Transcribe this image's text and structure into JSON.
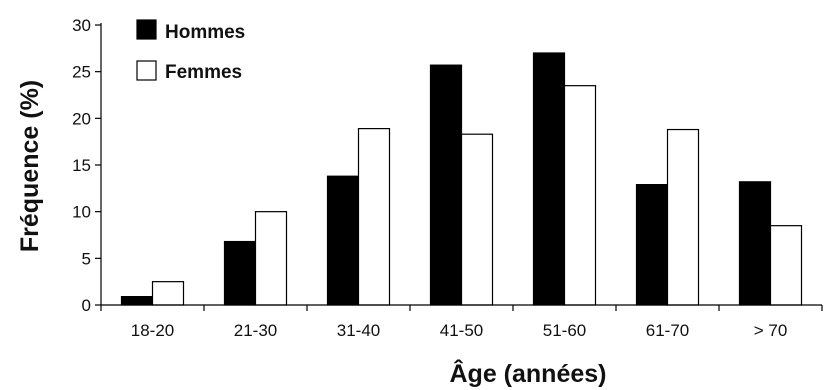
{
  "chart_data": {
    "type": "bar",
    "xlabel": "Âge (années)",
    "ylabel": "Fréquence (%)",
    "ylim": [
      0,
      30
    ],
    "yticks": [
      0,
      5,
      10,
      15,
      20,
      25,
      30
    ],
    "categories": [
      "18-20",
      "21-30",
      "31-40",
      "41-50",
      "51-60",
      "61-70",
      "> 70"
    ],
    "series": [
      {
        "name": "Hommes",
        "color": "#000000",
        "values": [
          0.9,
          6.8,
          13.8,
          25.7,
          27.0,
          12.9,
          13.2
        ]
      },
      {
        "name": "Femmes",
        "color": "#ffffff",
        "values": [
          2.5,
          10.0,
          18.9,
          18.3,
          23.5,
          18.8,
          8.5
        ]
      }
    ],
    "legend": "top-left",
    "grid": false
  }
}
